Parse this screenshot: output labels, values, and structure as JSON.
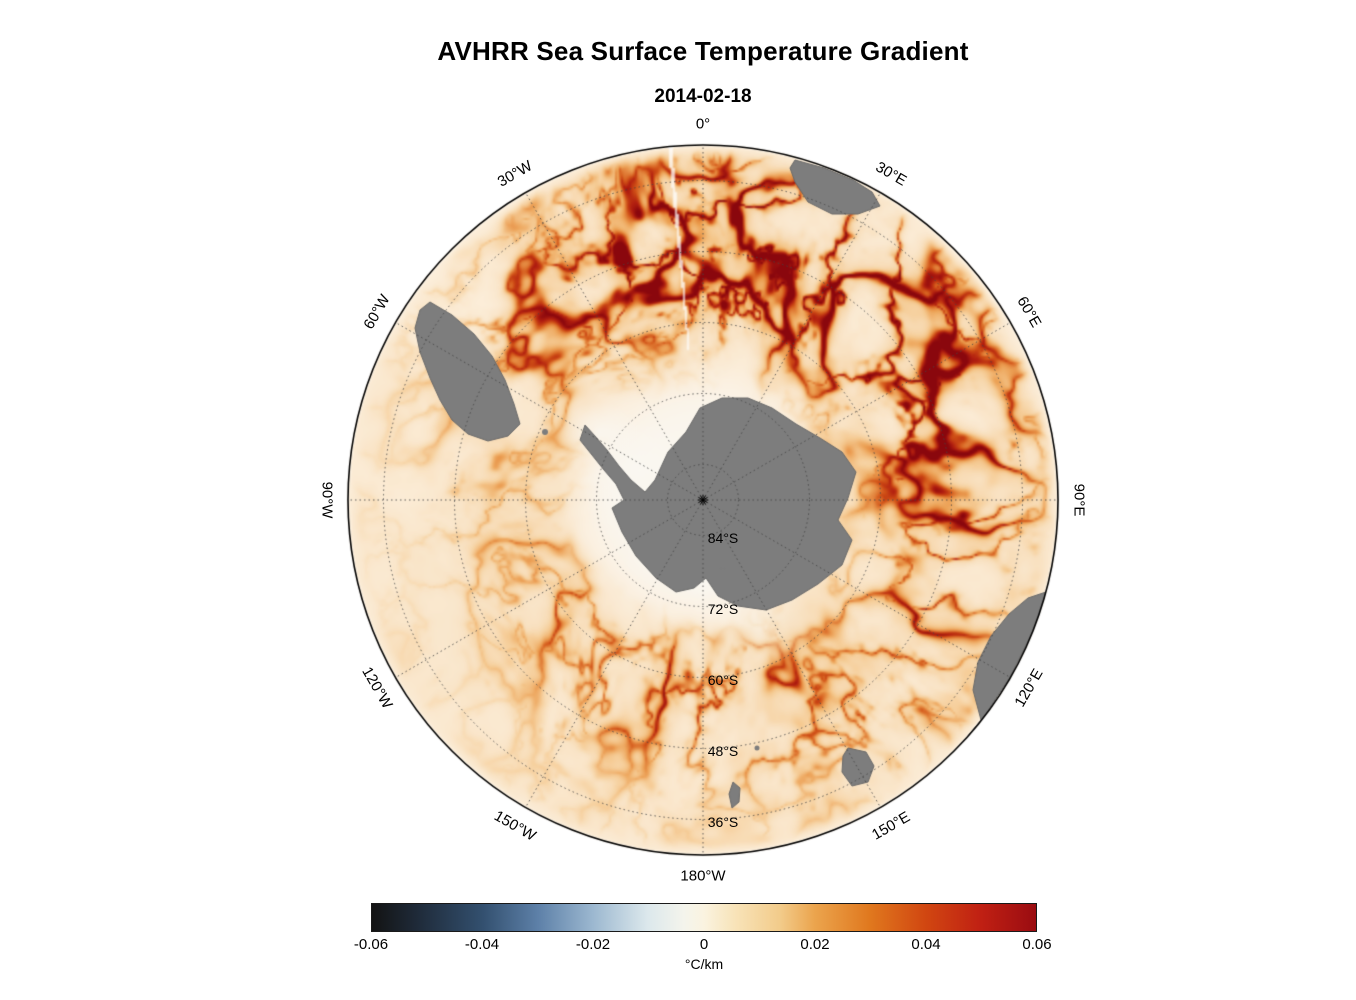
{
  "chart_data": {
    "type": "heatmap",
    "title": "AVHRR Sea Surface Temperature Gradient",
    "subtitle": "2014-02-18",
    "projection": "south polar stereographic",
    "units": "°C/km",
    "value_range": [
      -0.06,
      0.06
    ],
    "outer_latitude_deg_s": 30,
    "grid_style": "dotted",
    "land_color": "#7d7d7d",
    "ocean_base_color": "#fcefdc",
    "colorbar": {
      "label": "°C/km",
      "orientation": "horizontal",
      "ticks": [
        {
          "value": -0.06,
          "label": "-0.06"
        },
        {
          "value": -0.04,
          "label": "-0.04"
        },
        {
          "value": -0.02,
          "label": "-0.02"
        },
        {
          "value": 0,
          "label": "0"
        },
        {
          "value": 0.02,
          "label": "0.02"
        },
        {
          "value": 0.04,
          "label": "0.04"
        },
        {
          "value": 0.06,
          "label": "0.06"
        }
      ],
      "stops": [
        {
          "pos": 0.0,
          "color": "#131313"
        },
        {
          "pos": 0.07,
          "color": "#1f2b3a"
        },
        {
          "pos": 0.167,
          "color": "#33506f"
        },
        {
          "pos": 0.25,
          "color": "#5d80a8"
        },
        {
          "pos": 0.333,
          "color": "#9cb8d0"
        },
        {
          "pos": 0.415,
          "color": "#dce8ec"
        },
        {
          "pos": 0.47,
          "color": "#f4f4ec"
        },
        {
          "pos": 0.5,
          "color": "#faf3e0"
        },
        {
          "pos": 0.545,
          "color": "#f8e4ba"
        },
        {
          "pos": 0.615,
          "color": "#f2cb8a"
        },
        {
          "pos": 0.667,
          "color": "#eba44d"
        },
        {
          "pos": 0.75,
          "color": "#e0781e"
        },
        {
          "pos": 0.833,
          "color": "#d14711"
        },
        {
          "pos": 0.917,
          "color": "#c02013"
        },
        {
          "pos": 1.0,
          "color": "#9a0c11"
        }
      ]
    },
    "meridian_labels": [
      {
        "text": "0°",
        "angle_deg": 0
      },
      {
        "text": "30°E",
        "angle_deg": 30
      },
      {
        "text": "60°E",
        "angle_deg": 60
      },
      {
        "text": "90°E",
        "angle_deg": 90
      },
      {
        "text": "120°E",
        "angle_deg": 120
      },
      {
        "text": "150°E",
        "angle_deg": 150
      },
      {
        "text": "180°W",
        "angle_deg": 180
      },
      {
        "text": "150°W",
        "angle_deg": 210
      },
      {
        "text": "120°W",
        "angle_deg": 240
      },
      {
        "text": "90°W",
        "angle_deg": 270
      },
      {
        "text": "60°W",
        "angle_deg": 300
      },
      {
        "text": "30°W",
        "angle_deg": 330
      }
    ],
    "parallel_labels": [
      {
        "text": "84°S",
        "lat": 84
      },
      {
        "text": "72°S",
        "lat": 72
      },
      {
        "text": "60°S",
        "lat": 60
      },
      {
        "text": "48°S",
        "lat": 48
      },
      {
        "text": "36°S",
        "lat": 36
      }
    ]
  }
}
